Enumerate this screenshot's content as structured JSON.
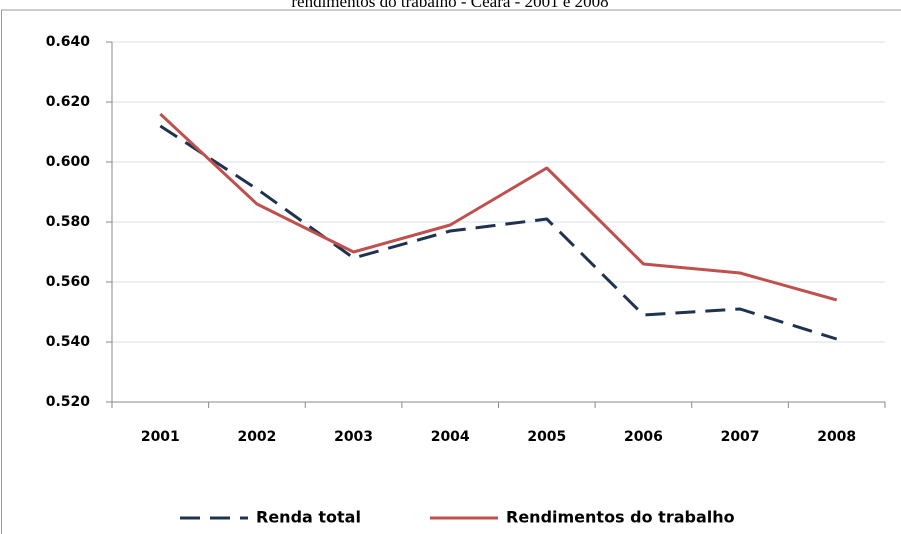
{
  "chart_data": {
    "type": "line",
    "title": "rendimentos do trabalho - Ceará - 2001 e 2008",
    "categories": [
      "2001",
      "2002",
      "2003",
      "2004",
      "2005",
      "2006",
      "2007",
      "2008"
    ],
    "series": [
      {
        "name": "Renda total",
        "color": "#1f3350",
        "line_style": "dashed",
        "values": [
          0.612,
          0.591,
          0.568,
          0.577,
          0.581,
          0.549,
          0.551,
          0.541
        ]
      },
      {
        "name": "Rendimentos do trabalho",
        "color": "#c0504d",
        "line_style": "solid",
        "values": [
          0.616,
          0.586,
          0.57,
          0.579,
          0.598,
          0.566,
          0.563,
          0.554
        ]
      }
    ],
    "ylim": [
      0.52,
      0.64
    ],
    "yticks": [
      {
        "value": 0.52,
        "label": "0.520"
      },
      {
        "value": 0.54,
        "label": "0.540"
      },
      {
        "value": 0.56,
        "label": "0.560"
      },
      {
        "value": 0.58,
        "label": "0.580"
      },
      {
        "value": 0.6,
        "label": "0.600"
      },
      {
        "value": 0.62,
        "label": "0.620"
      },
      {
        "value": 0.64,
        "label": "0.640"
      }
    ],
    "grid": true,
    "legend": "bottom"
  }
}
